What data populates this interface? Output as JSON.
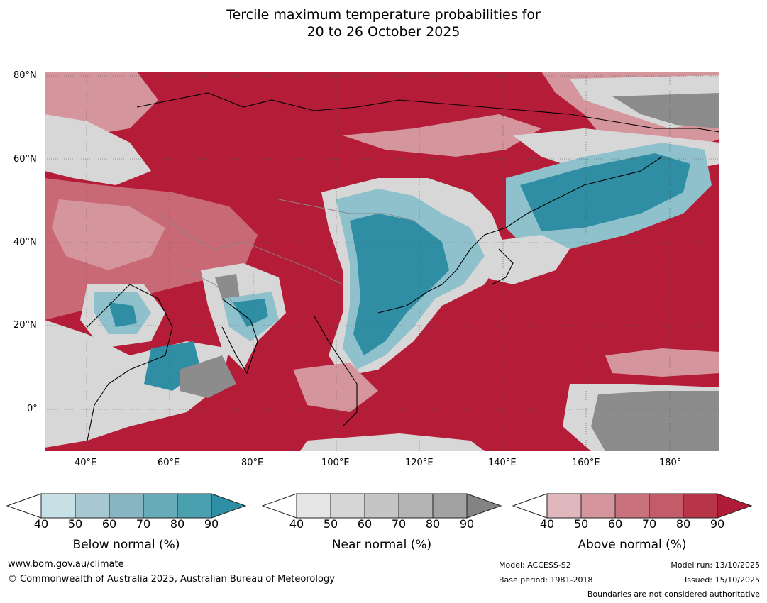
{
  "title": {
    "line1": "Tercile maximum temperature probabilities for",
    "line2": "20 to 26 October 2025"
  },
  "map": {
    "lon_range": [
      30,
      192
    ],
    "lat_range": [
      -10,
      81
    ],
    "lat_labels": [
      "80°N",
      "60°N",
      "40°N",
      "20°N",
      "0°"
    ],
    "lon_labels": [
      "40°E",
      "60°E",
      "80°E",
      "100°E",
      "120°E",
      "140°E",
      "160°E",
      "180°"
    ],
    "colors": {
      "above_base": "#b51c37",
      "above_light": "#d4959d",
      "above_mid": "#c96975",
      "near_light": "#d7d7d7",
      "near_dark": "#8c8c8c",
      "below_light": "#8fc1cc",
      "below_dark": "#2f8ea4"
    }
  },
  "colorbars": [
    {
      "name": "Below normal (%)",
      "ticks": [
        "40",
        "50",
        "60",
        "70",
        "80",
        "90"
      ],
      "colors": [
        "#c7e0e6",
        "#a7c8d1",
        "#87b5c1",
        "#67aab8",
        "#4aa0ae",
        "#2e8fa4"
      ]
    },
    {
      "name": "Near normal (%)",
      "ticks": [
        "40",
        "50",
        "60",
        "70",
        "80",
        "90"
      ],
      "colors": [
        "#e6e6e6",
        "#d6d6d6",
        "#c5c5c5",
        "#b4b4b4",
        "#a2a2a2",
        "#838383"
      ]
    },
    {
      "name": "Above normal (%)",
      "ticks": [
        "40",
        "50",
        "60",
        "70",
        "80",
        "90"
      ],
      "colors": [
        "#e0b7bd",
        "#d4959d",
        "#c9717c",
        "#c25c69",
        "#b83548",
        "#b01c37"
      ]
    }
  ],
  "footer": {
    "url": "www.bom.gov.au/climate",
    "copyright": "© Commonwealth of Australia 2025, Australian Bureau of Meteorology",
    "model": "Model: ACCESS-S2",
    "base_period": "Base period: 1981-2018",
    "model_run": "Model run: 13/10/2025",
    "issued": "Issued: 15/10/2025",
    "disclaimer": "Boundaries are not considered authoritative"
  }
}
